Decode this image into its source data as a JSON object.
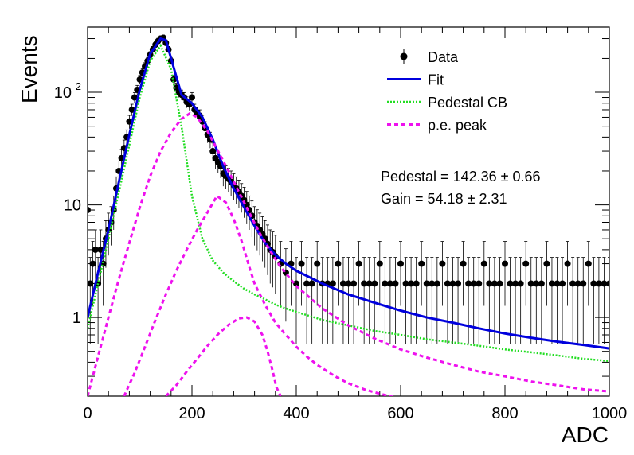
{
  "chart_data": {
    "type": "scatter",
    "xlabel": "ADC",
    "ylabel": "Events",
    "xlim": [
      0,
      1000
    ],
    "ylim": [
      0.2,
      380
    ],
    "yscale": "log",
    "grid": false,
    "legend_position": "top-right",
    "x_ticks": [
      {
        "value": 0,
        "label": "0"
      },
      {
        "value": 200,
        "label": "200"
      },
      {
        "value": 400,
        "label": "400"
      },
      {
        "value": 600,
        "label": "600"
      },
      {
        "value": 800,
        "label": "800"
      },
      {
        "value": 1000,
        "label": "1000"
      }
    ],
    "y_ticks": [
      {
        "value": 1,
        "label": "1"
      },
      {
        "value": 10,
        "label": "10"
      },
      {
        "value": 100,
        "label": "10",
        "exponent": "2"
      }
    ],
    "legend": [
      {
        "label": "Data",
        "style": "marker",
        "color": "#000000"
      },
      {
        "label": "Fit",
        "style": "line",
        "color": "#0000dd"
      },
      {
        "label": "Pedestal CB",
        "style": "dotted",
        "color": "#22dd22"
      },
      {
        "label": "p.e. peak",
        "style": "dashed",
        "color": "#ee11ee"
      }
    ],
    "annotations": [
      {
        "text": "Pedestal = 142.36 ± 0.66"
      },
      {
        "text": "Gain = 54.18 ± 2.31"
      }
    ],
    "series": [
      {
        "name": "Data",
        "kind": "points",
        "color": "#000000",
        "x": [
          0,
          5,
          10,
          15,
          20,
          25,
          30,
          35,
          40,
          45,
          50,
          55,
          60,
          65,
          70,
          75,
          80,
          85,
          90,
          95,
          100,
          105,
          110,
          115,
          120,
          125,
          130,
          135,
          140,
          145,
          150,
          155,
          160,
          165,
          170,
          175,
          180,
          185,
          190,
          195,
          200,
          205,
          210,
          215,
          220,
          225,
          230,
          235,
          240,
          245,
          250,
          255,
          260,
          265,
          270,
          275,
          280,
          285,
          290,
          295,
          300,
          305,
          310,
          315,
          320,
          325,
          330,
          335,
          340,
          345,
          350,
          355,
          360,
          370,
          380,
          390,
          400,
          410,
          420,
          430,
          440,
          450,
          460,
          470,
          480,
          490,
          500,
          510,
          520,
          530,
          540,
          550,
          560,
          570,
          580,
          590,
          600,
          610,
          620,
          630,
          640,
          650,
          660,
          670,
          680,
          690,
          700,
          710,
          720,
          730,
          740,
          750,
          760,
          770,
          780,
          790,
          800,
          810,
          820,
          830,
          840,
          850,
          860,
          870,
          880,
          890,
          900,
          910,
          920,
          930,
          940,
          950,
          960,
          970,
          980,
          990,
          1000
        ],
        "y": [
          9,
          2,
          3,
          4,
          2,
          4,
          3,
          5,
          6,
          7,
          9,
          14,
          20,
          26,
          32,
          40,
          55,
          70,
          90,
          105,
          130,
          150,
          170,
          190,
          215,
          240,
          265,
          285,
          300,
          305,
          275,
          240,
          190,
          130,
          110,
          100,
          95,
          90,
          82,
          78,
          90,
          70,
          66,
          62,
          55,
          48,
          42,
          38,
          30,
          26,
          24,
          22,
          19,
          18,
          17,
          16,
          15,
          14,
          13,
          12,
          11,
          10,
          9,
          8,
          7,
          6.5,
          6,
          5.5,
          5,
          4.5,
          4,
          3.8,
          3.5,
          3,
          2.5,
          3,
          2,
          3,
          2,
          2,
          3,
          2,
          2,
          2,
          3,
          2,
          2,
          2,
          3,
          2,
          2,
          2,
          3,
          2,
          2,
          2,
          3,
          2,
          2,
          2,
          3,
          2,
          2,
          2,
          3,
          2,
          2,
          2,
          3,
          2,
          2,
          2,
          3,
          2,
          2,
          2,
          3,
          2,
          2,
          2,
          3,
          2,
          2,
          2,
          3,
          2,
          2,
          2,
          3,
          2,
          2,
          2,
          3,
          2,
          2,
          2,
          2
        ]
      },
      {
        "name": "Fit",
        "kind": "line",
        "color": "#0000dd",
        "x": [
          0,
          20,
          40,
          60,
          80,
          100,
          120,
          140,
          150,
          160,
          180,
          200,
          220,
          240,
          260,
          280,
          300,
          320,
          340,
          360,
          380,
          400,
          450,
          500,
          550,
          600,
          650,
          700,
          750,
          800,
          850,
          900,
          950,
          1000
        ],
        "y": [
          1,
          2.5,
          6,
          16,
          42,
          105,
          220,
          300,
          290,
          200,
          95,
          80,
          60,
          38,
          22,
          14,
          9.5,
          6.5,
          4.6,
          3.6,
          3,
          2.6,
          2,
          1.6,
          1.35,
          1.15,
          1,
          0.9,
          0.8,
          0.72,
          0.66,
          0.61,
          0.57,
          0.53
        ]
      },
      {
        "name": "Pedestal CB",
        "kind": "dotted",
        "color": "#22dd22",
        "x": [
          0,
          20,
          40,
          60,
          80,
          100,
          120,
          140,
          160,
          180,
          200,
          220,
          240,
          260,
          280,
          300,
          320,
          340,
          360,
          380,
          400,
          450,
          500,
          550,
          600,
          650,
          700,
          750,
          800,
          850,
          900,
          950,
          1000
        ],
        "y": [
          0.8,
          2,
          5,
          13,
          34,
          90,
          190,
          260,
          160,
          50,
          12,
          5,
          3.2,
          2.5,
          2.1,
          1.8,
          1.6,
          1.45,
          1.3,
          1.2,
          1.12,
          0.95,
          0.85,
          0.76,
          0.7,
          0.64,
          0.6,
          0.56,
          0.52,
          0.49,
          0.46,
          0.43,
          0.41
        ]
      },
      {
        "name": "p.e. peak",
        "kind": "dashed",
        "color": "#ee11ee",
        "x": [
          0,
          20,
          40,
          60,
          80,
          100,
          120,
          140,
          160,
          180,
          196,
          210,
          230,
          250,
          270,
          290,
          310,
          330,
          350,
          370,
          400,
          450,
          500,
          550,
          600,
          650,
          700,
          750,
          800,
          850,
          900,
          950,
          1000
        ],
        "y": [
          0.2,
          0.45,
          1.0,
          2.2,
          4.6,
          9.5,
          18,
          30,
          44,
          58,
          65,
          60,
          45,
          30,
          20,
          13,
          8.5,
          5.6,
          3.9,
          2.8,
          1.9,
          1.2,
          0.85,
          0.65,
          0.52,
          0.44,
          0.38,
          0.33,
          0.3,
          0.27,
          0.25,
          0.23,
          0.22
        ]
      },
      {
        "name": "p.e. peak",
        "kind": "dashed",
        "color": "#ee11ee",
        "x": [
          70,
          90,
          110,
          130,
          150,
          170,
          190,
          210,
          230,
          248,
          265,
          280,
          295,
          310,
          320,
          340,
          360,
          380,
          400,
          420,
          440,
          460,
          480,
          500,
          530,
          560,
          600
        ],
        "y": [
          0.2,
          0.32,
          0.55,
          0.95,
          1.6,
          2.6,
          4,
          6,
          8.6,
          12,
          10.5,
          7.5,
          4.8,
          2.8,
          2,
          1.3,
          0.9,
          0.7,
          0.55,
          0.45,
          0.38,
          0.33,
          0.29,
          0.26,
          0.23,
          0.21,
          0.19
        ]
      },
      {
        "name": "p.e. peak",
        "kind": "dashed",
        "color": "#ee11ee",
        "x": [
          150,
          170,
          190,
          210,
          230,
          250,
          270,
          290,
          305,
          320,
          335,
          345,
          355,
          362,
          370
        ],
        "y": [
          0.2,
          0.25,
          0.33,
          0.43,
          0.56,
          0.71,
          0.86,
          0.98,
          1.0,
          0.92,
          0.7,
          0.5,
          0.33,
          0.24,
          0.2
        ]
      }
    ]
  }
}
